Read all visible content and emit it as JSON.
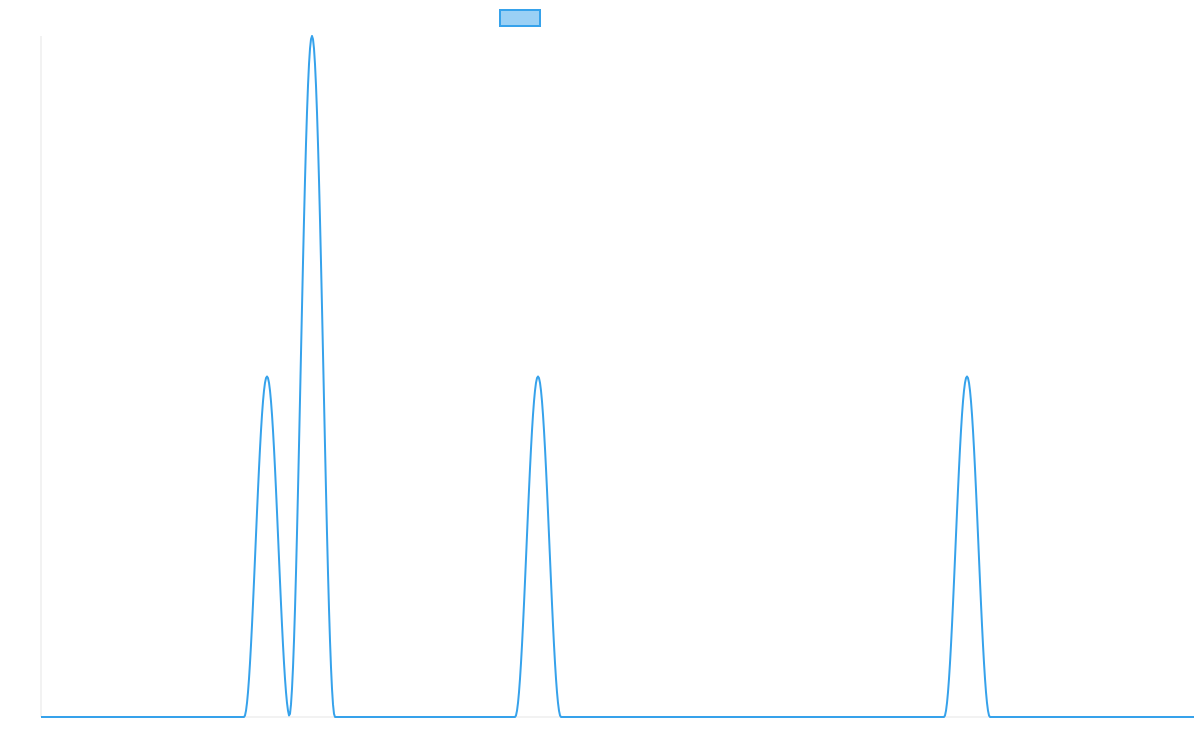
{
  "chart_data": {
    "type": "line",
    "title": "",
    "xlabel": "",
    "ylabel": "",
    "xlim": [
      0,
      1153
    ],
    "ylim": [
      0,
      1
    ],
    "grid": false,
    "legend": {
      "placement": "top-center",
      "entries": [
        {
          "label": "",
          "color": "#36A2EB",
          "fill": "#9AD0F5"
        }
      ]
    },
    "series": [
      {
        "color": "#36A2EB",
        "x": [
          0,
          203,
          207,
          211,
          215,
          219,
          223,
          227,
          231,
          235,
          239,
          243,
          245,
          249,
          253,
          257,
          261,
          265,
          269,
          271,
          275,
          279,
          283,
          287,
          291,
          295,
          299,
          303,
          307,
          311,
          315,
          319,
          323,
          327,
          331,
          335,
          339,
          343,
          347,
          351,
          355,
          359,
          363,
          367,
          371,
          375,
          379,
          383,
          387,
          391,
          395,
          399,
          403,
          407,
          411,
          415,
          419,
          423,
          427,
          431,
          435,
          439,
          443,
          447,
          451,
          455,
          459,
          463,
          467,
          471,
          475,
          479,
          483,
          487,
          491,
          495,
          499,
          503,
          507,
          511,
          515,
          519,
          523,
          527,
          531,
          535,
          539,
          543,
          547,
          551,
          555,
          559,
          563,
          567,
          571,
          575,
          579,
          583,
          587,
          591,
          595,
          599,
          603,
          607,
          611,
          615,
          619,
          623,
          627,
          631,
          635,
          639,
          643,
          647,
          651,
          655,
          659,
          663,
          667,
          671,
          675,
          679,
          683,
          687,
          691,
          695,
          699,
          703,
          707,
          711,
          715,
          719,
          723,
          727,
          731,
          735,
          739,
          743,
          747,
          751,
          755,
          759,
          763,
          767,
          771,
          775,
          779,
          783,
          787,
          791,
          795,
          799,
          803,
          807,
          811,
          815,
          819,
          823,
          827,
          831,
          835,
          839,
          843,
          847,
          851,
          855,
          859,
          863,
          867,
          871,
          875,
          879,
          883,
          887,
          891,
          895,
          899,
          903,
          907,
          911,
          915,
          919,
          923,
          927,
          931,
          935,
          939,
          943,
          947,
          951,
          955,
          959,
          963,
          967,
          971,
          975,
          979,
          983,
          987,
          991,
          995,
          999,
          1003,
          1007,
          1011,
          1015,
          1019,
          1023,
          1027,
          1031,
          1035,
          1039,
          1043,
          1047,
          1051,
          1055,
          1059,
          1063,
          1067,
          1071,
          1075,
          1079,
          1083,
          1087,
          1091,
          1095,
          1099,
          1103,
          1107,
          1111,
          1115,
          1119,
          1123,
          1127,
          1131,
          1135,
          1139,
          1143,
          1147,
          1153
        ],
        "peaks": [
          {
            "center": 226,
            "half_width": 23,
            "height": 0.5
          },
          {
            "center": 271,
            "half_width": 23,
            "height": 1.0
          },
          {
            "center": 497,
            "half_width": 23,
            "height": 0.5
          },
          {
            "center": 926,
            "half_width": 23,
            "height": 0.5
          }
        ]
      }
    ]
  }
}
